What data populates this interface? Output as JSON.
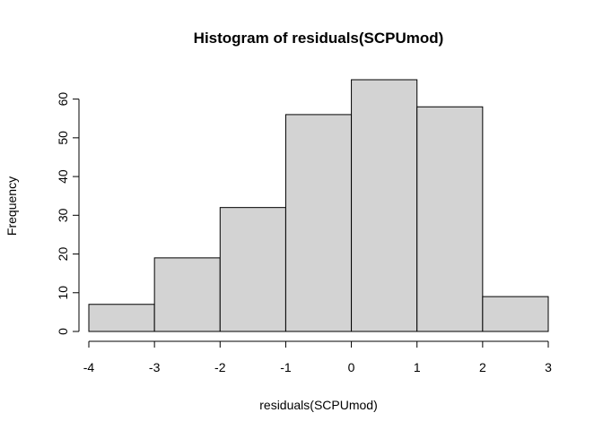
{
  "chart_data": {
    "type": "bar",
    "title": "Histogram of residuals(SCPUmod)",
    "xlabel": "residuals(SCPUmod)",
    "ylabel": "Frequency",
    "bins": [
      {
        "from": -4,
        "to": -3,
        "count": 7
      },
      {
        "from": -3,
        "to": -2,
        "count": 19
      },
      {
        "from": -2,
        "to": -1,
        "count": 32
      },
      {
        "from": -1,
        "to": 0,
        "count": 56
      },
      {
        "from": 0,
        "to": 1,
        "count": 65
      },
      {
        "from": 1,
        "to": 2,
        "count": 58
      },
      {
        "from": 2,
        "to": 3,
        "count": 9
      }
    ],
    "xticks": [
      "-4",
      "-3",
      "-2",
      "-1",
      "0",
      "1",
      "2",
      "3"
    ],
    "yticks": [
      "0",
      "10",
      "20",
      "30",
      "40",
      "50",
      "60"
    ],
    "xlim": [
      -4,
      3
    ],
    "ylim": [
      0,
      65
    ],
    "bar_color": "#d3d3d3",
    "grid": false,
    "legend": "none"
  }
}
